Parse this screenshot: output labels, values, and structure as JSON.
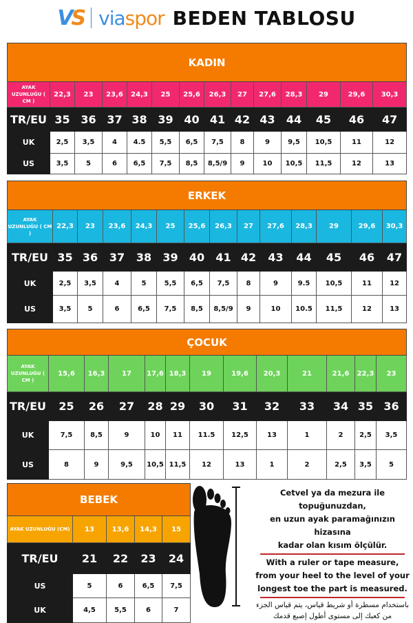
{
  "header": {
    "logo_mark": "VS",
    "brand_a": "via",
    "brand_b": "spor",
    "title": "BEDEN TABLOSU"
  },
  "colors": {
    "section_header": "#f47b00",
    "kadin_row": "#f2286f",
    "erkek_row": "#1ab8e0",
    "cocuk_row": "#6ed35a",
    "bebek_row": "#f7a400",
    "dark_row": "#1b1b1b",
    "divider": "#c0262b"
  },
  "row_labels": {
    "length": "AYAK UZUNLUĞU ( CM )",
    "length_bebek": "AYAK UZUNLUĞU (CM)",
    "treu": "TR/EU",
    "uk": "UK",
    "us": "US"
  },
  "tables": [
    {
      "key": "kadin",
      "title": "KADIN",
      "length": [
        "22,3",
        "23",
        "23,6",
        "24,3",
        "25",
        "25,6",
        "26,3",
        "27",
        "27,6",
        "28,3",
        "29",
        "29,6",
        "30,3"
      ],
      "treu": [
        "35",
        "36",
        "37",
        "38",
        "39",
        "40",
        "41",
        "42",
        "43",
        "44",
        "45",
        "46",
        "47"
      ],
      "uk": [
        "2,5",
        "3,5",
        "4",
        "4.5",
        "5,5",
        "6,5",
        "7,5",
        "8",
        "9",
        "9,5",
        "10,5",
        "11",
        "12"
      ],
      "us": [
        "3,5",
        "5",
        "6",
        "6,5",
        "7,5",
        "8,5",
        "8,5/9",
        "9",
        "10",
        "10,5",
        "11,5",
        "12",
        "13"
      ]
    },
    {
      "key": "erkek",
      "title": "ERKEK",
      "length": [
        "22,3",
        "23",
        "23,6",
        "24,3",
        "25",
        "25,6",
        "26,3",
        "27",
        "27,6",
        "28,3",
        "29",
        "29,6",
        "30,3"
      ],
      "treu": [
        "35",
        "36",
        "37",
        "38",
        "39",
        "40",
        "41",
        "42",
        "43",
        "44",
        "45",
        "46",
        "47"
      ],
      "uk": [
        "2,5",
        "3,5",
        "4",
        "5",
        "5,5",
        "6,5",
        "7,5",
        "8",
        "9",
        "9.5",
        "10,5",
        "11",
        "12"
      ],
      "us": [
        "3,5",
        "5",
        "6",
        "6,5",
        "7,5",
        "8,5",
        "8,5/9",
        "9",
        "10",
        "10.5",
        "11,5",
        "12",
        "13"
      ]
    },
    {
      "key": "cocuk",
      "title": "ÇOCUK",
      "length": [
        "15,6",
        "16,3",
        "17",
        "17,6",
        "18,3",
        "19",
        "19,6",
        "20,3",
        "21",
        "21,6",
        "22,3",
        "23"
      ],
      "treu": [
        "25",
        "26",
        "27",
        "28",
        "29",
        "30",
        "31",
        "32",
        "33",
        "34",
        "35",
        "36"
      ],
      "uk": [
        "7,5",
        "8,5",
        "9",
        "10",
        "11",
        "11.5",
        "12,5",
        "13",
        "1",
        "2",
        "2,5",
        "3,5"
      ],
      "us": [
        "8",
        "9",
        "9,5",
        "10,5",
        "11,5",
        "12",
        "13",
        "1",
        "2",
        "2,5",
        "3,5",
        "5"
      ]
    },
    {
      "key": "bebek",
      "title": "BEBEK",
      "length": [
        "13",
        "13,6",
        "14,3",
        "15"
      ],
      "treu": [
        "21",
        "22",
        "23",
        "24"
      ],
      "us": [
        "5",
        "6",
        "6,5",
        "7,5"
      ],
      "uk": [
        "4,5",
        "5,5",
        "6",
        "7"
      ]
    }
  ],
  "instructions": {
    "tr": [
      "Cetvel ya da mezura ile topuğunuzdan,",
      "en uzun ayak paramağınızın hizasına",
      "kadar olan kısım ölçülür."
    ],
    "en": [
      "With a ruler or tape measure,",
      "from your heel to the level of your",
      "longest toe the part is measured."
    ],
    "ar": [
      "باستخدام مسطرة أو شريط قياس، يتم قياس الجزء",
      "من كعبك إلى مستوى أطول إصبع قدمك"
    ]
  }
}
